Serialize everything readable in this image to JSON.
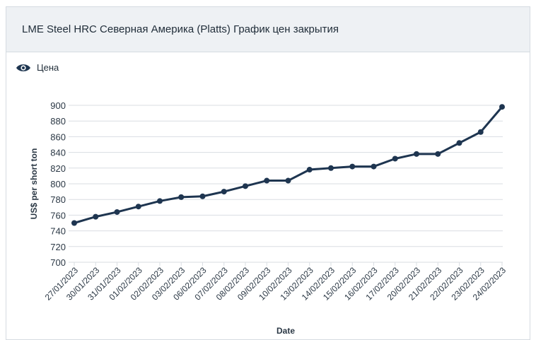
{
  "header": {
    "title": "LME Steel HRC Северная Америка (Platts) График цен закрытия"
  },
  "legend": {
    "label": "Цена",
    "icon": "eye-icon"
  },
  "colors": {
    "line": "#1e3550",
    "grid": "#d9dde2",
    "text": "#2b3845"
  },
  "chart_data": {
    "type": "line",
    "title": "LME Steel HRC Северная Америка (Platts) График цен закрытия",
    "xlabel": "Date",
    "ylabel": "US$ per short ton",
    "ylim": [
      700,
      900
    ],
    "yticks": [
      700,
      720,
      740,
      760,
      780,
      800,
      820,
      840,
      860,
      880,
      900
    ],
    "grid": true,
    "legend_position": "top-left",
    "categories": [
      "27/01/2023",
      "30/01/2023",
      "31/01/2023",
      "01/02/2023",
      "02/02/2023",
      "03/02/2023",
      "06/02/2023",
      "07/02/2023",
      "08/02/2023",
      "09/02/2023",
      "10/02/2023",
      "13/02/2023",
      "14/02/2023",
      "15/02/2023",
      "16/02/2023",
      "17/02/2023",
      "20/02/2023",
      "21/02/2023",
      "22/02/2023",
      "23/02/2023",
      "24/02/2023"
    ],
    "series": [
      {
        "name": "Цена",
        "values": [
          750,
          758,
          764,
          771,
          778,
          783,
          784,
          790,
          797,
          804,
          804,
          818,
          820,
          822,
          822,
          832,
          838,
          838,
          852,
          866,
          898
        ]
      }
    ]
  }
}
